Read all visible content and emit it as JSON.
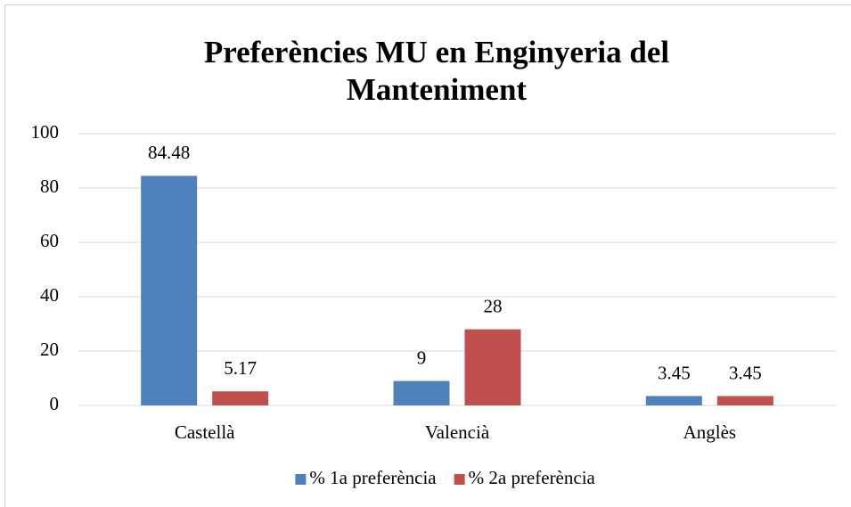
{
  "chart_data": {
    "type": "bar",
    "title": "Preferències MU en Enginyeria del Manteniment",
    "categories": [
      "Castellà",
      "Valencià",
      "Anglès"
    ],
    "series": [
      {
        "name": "% 1a preferència",
        "color": "#4f81bd",
        "values": [
          84.48,
          9,
          3.45
        ]
      },
      {
        "name": "% 2a preferència",
        "color": "#c0504d",
        "values": [
          5.17,
          28,
          3.45
        ]
      }
    ],
    "ylim": [
      0,
      100
    ],
    "yticks": [
      0,
      20,
      40,
      60,
      80,
      100
    ],
    "grid": true,
    "legend": "bottom"
  }
}
